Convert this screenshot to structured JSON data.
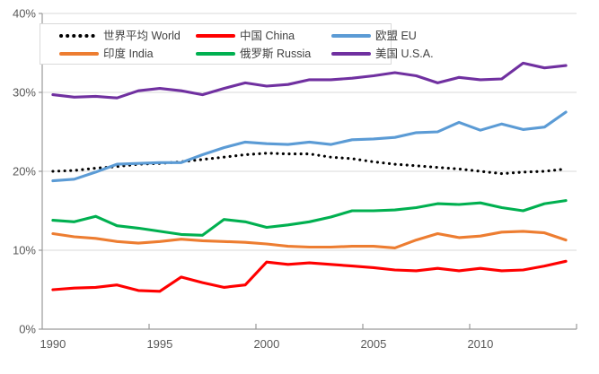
{
  "chart_data": {
    "type": "line",
    "x": [
      1990,
      1991,
      1992,
      1993,
      1994,
      1995,
      1996,
      1997,
      1998,
      1999,
      2000,
      2001,
      2002,
      2003,
      2004,
      2005,
      2006,
      2007,
      2008,
      2009,
      2010,
      2011,
      2012,
      2013,
      2014
    ],
    "x_tick_labels": [
      "1990",
      "1995",
      "2000",
      "2005",
      "2010"
    ],
    "x_tick_years": [
      1990,
      1995,
      2000,
      2005,
      2010
    ],
    "y_ticks": [
      "0%",
      "10%",
      "20%",
      "30%",
      "40%"
    ],
    "y_tick_values": [
      0,
      10,
      20,
      30,
      40
    ],
    "ylim": [
      0,
      40
    ],
    "grid": true,
    "legend_position": "top-left",
    "axis_color": "#999999",
    "grid_color": "#D9D9D9",
    "label_color": "#595959",
    "series": [
      {
        "key": "world",
        "name": "世界平均 World",
        "color": "#000000",
        "style": "dotted",
        "values": [
          20.0,
          20.1,
          20.4,
          20.6,
          20.9,
          21.0,
          21.2,
          21.5,
          21.8,
          22.1,
          22.3,
          22.2,
          22.2,
          21.8,
          21.6,
          21.2,
          20.9,
          20.7,
          20.5,
          20.3,
          20.0,
          19.7,
          19.9,
          20.0,
          20.3
        ]
      },
      {
        "key": "china",
        "name": "中国 China",
        "color": "#FF0000",
        "style": "solid",
        "values": [
          5.0,
          5.2,
          5.3,
          5.6,
          4.9,
          4.8,
          6.6,
          5.9,
          5.3,
          5.6,
          8.5,
          8.2,
          8.4,
          8.2,
          8.0,
          7.8,
          7.5,
          7.4,
          7.7,
          7.4,
          7.7,
          7.4,
          7.5,
          8.0,
          8.6
        ]
      },
      {
        "key": "eu",
        "name": "欧盟 EU",
        "color": "#5B9BD5",
        "style": "solid",
        "values": [
          18.8,
          19.0,
          19.9,
          20.9,
          21.0,
          21.1,
          21.1,
          22.1,
          23.0,
          23.7,
          23.5,
          23.4,
          23.7,
          23.4,
          24.0,
          24.1,
          24.3,
          24.9,
          25.0,
          26.2,
          25.2,
          26.0,
          25.3,
          25.6,
          27.5
        ]
      },
      {
        "key": "india",
        "name": "印度 India",
        "color": "#ED7D31",
        "style": "solid",
        "values": [
          12.1,
          11.7,
          11.5,
          11.1,
          10.9,
          11.1,
          11.4,
          11.2,
          11.1,
          11.0,
          10.8,
          10.5,
          10.4,
          10.4,
          10.5,
          10.5,
          10.3,
          11.3,
          12.1,
          11.6,
          11.8,
          12.3,
          12.4,
          12.2,
          11.3
        ]
      },
      {
        "key": "russia",
        "name": "俄罗斯 Russia",
        "color": "#00B050",
        "style": "solid",
        "values": [
          13.8,
          13.6,
          14.3,
          13.1,
          12.8,
          12.4,
          12.0,
          11.9,
          13.9,
          13.6,
          12.9,
          13.2,
          13.6,
          14.2,
          15.0,
          15.0,
          15.1,
          15.4,
          15.9,
          15.8,
          16.0,
          15.4,
          15.0,
          15.9,
          16.3
        ]
      },
      {
        "key": "usa",
        "name": "美国 U.S.A.",
        "color": "#7030A0",
        "style": "solid",
        "values": [
          29.7,
          29.4,
          29.5,
          29.3,
          30.2,
          30.5,
          30.2,
          29.7,
          30.5,
          31.2,
          30.8,
          31.0,
          31.6,
          31.6,
          31.8,
          32.1,
          32.5,
          32.1,
          31.2,
          31.9,
          31.6,
          31.7,
          33.7,
          33.1,
          33.4
        ]
      }
    ]
  }
}
